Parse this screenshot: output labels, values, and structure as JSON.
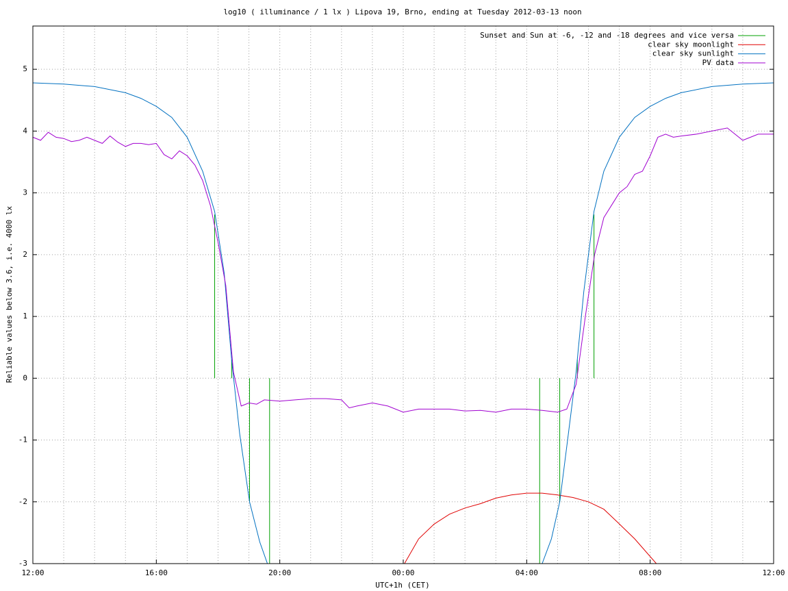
{
  "chart_data": {
    "type": "line",
    "title": "log10 ( illuminance / 1 lx ) Lipova 19, Brno, ending at Tuesday 2012-03-13 noon",
    "x_label": "UTC+1h (CET)",
    "y_label": "Reliable values below 3.6, i.e. 4000 lx",
    "xlim": [
      0,
      24
    ],
    "ylim": [
      -3,
      5.7
    ],
    "xticks": [
      {
        "value": 0,
        "label": "12:00"
      },
      {
        "value": 4,
        "label": "16:00"
      },
      {
        "value": 8,
        "label": "20:00"
      },
      {
        "value": 12,
        "label": "00:00"
      },
      {
        "value": 16,
        "label": "04:00"
      },
      {
        "value": 20,
        "label": "08:00"
      },
      {
        "value": 24,
        "label": "12:00"
      }
    ],
    "x_minor_grid": [
      1,
      2,
      3,
      5,
      6,
      7,
      9,
      10,
      11,
      13,
      14,
      15,
      17,
      18,
      19,
      21,
      22,
      23
    ],
    "yticks": [
      -3,
      -2,
      -1,
      0,
      1,
      2,
      3,
      4,
      5
    ],
    "grid": true,
    "legend": "top-right",
    "series": [
      {
        "name": "Sunset and Sun at -6, -12 and -18 degrees and vice versa",
        "color": "#00a000",
        "style": "impulses",
        "x": [
          5.89,
          6.44,
          7.02,
          7.67,
          16.42,
          17.07,
          17.64,
          18.18
        ],
        "values": [
          2.65,
          0.3,
          -2.0,
          -3,
          -3,
          -2.0,
          0.3,
          2.65
        ]
      },
      {
        "name": "clear sky moonlight",
        "color": "#e00000",
        "style": "line",
        "x": [
          12.04,
          12.5,
          13,
          13.5,
          14,
          14.5,
          15,
          15.5,
          16,
          16.5,
          17,
          17.5,
          18,
          18.5,
          18.9,
          19.5,
          20.2
        ],
        "values": [
          -3,
          -2.6,
          -2.36,
          -2.2,
          -2.1,
          -2.03,
          -1.94,
          -1.89,
          -1.86,
          -1.86,
          -1.89,
          -1.93,
          -2.0,
          -2.12,
          -2.31,
          -2.6,
          -3
        ]
      },
      {
        "name": "clear sky sunlight",
        "color": "#0070c0",
        "style": "line",
        "x": [
          0,
          1,
          2,
          3,
          3.5,
          4,
          4.5,
          5,
          5.5,
          5.89,
          6.2,
          6.44,
          6.7,
          7.02,
          7.35,
          7.6,
          16.5,
          16.8,
          17.07,
          17.35,
          17.6,
          17.85,
          18.18,
          18.5,
          19,
          19.5,
          20,
          20.5,
          21,
          22,
          23,
          24
        ],
        "values": [
          4.78,
          4.76,
          4.72,
          4.62,
          4.53,
          4.4,
          4.22,
          3.9,
          3.35,
          2.7,
          1.7,
          0.3,
          -0.9,
          -2.0,
          -2.65,
          -3,
          -3,
          -2.6,
          -2.0,
          -0.9,
          0.1,
          1.4,
          2.7,
          3.35,
          3.9,
          4.22,
          4.4,
          4.53,
          4.62,
          4.72,
          4.76,
          4.78
        ]
      },
      {
        "name": "PV data",
        "color": "#a000d0",
        "style": "line",
        "x": [
          0,
          0.25,
          0.5,
          0.75,
          1,
          1.25,
          1.5,
          1.75,
          2,
          2.25,
          2.5,
          2.75,
          3,
          3.25,
          3.5,
          3.75,
          4,
          4.25,
          4.5,
          4.75,
          5,
          5.25,
          5.5,
          5.75,
          6,
          6.25,
          6.5,
          6.75,
          7,
          7.25,
          7.5,
          8,
          8.5,
          9,
          9.5,
          10,
          10.25,
          10.5,
          11,
          11.5,
          12,
          12.5,
          13,
          13.5,
          14,
          14.5,
          15,
          15.5,
          16,
          16.5,
          17,
          17.3,
          17.6,
          17.9,
          18.2,
          18.5,
          18.75,
          19,
          19.25,
          19.5,
          19.75,
          20,
          20.25,
          20.5,
          20.75,
          21,
          21.5,
          22,
          22.5,
          23,
          23.5,
          24
        ],
        "values": [
          3.9,
          3.85,
          3.98,
          3.9,
          3.88,
          3.83,
          3.85,
          3.9,
          3.85,
          3.8,
          3.92,
          3.82,
          3.75,
          3.8,
          3.8,
          3.78,
          3.8,
          3.62,
          3.55,
          3.68,
          3.6,
          3.45,
          3.2,
          2.8,
          2.2,
          1.5,
          0.1,
          -0.45,
          -0.4,
          -0.42,
          -0.35,
          -0.37,
          -0.35,
          -0.33,
          -0.33,
          -0.35,
          -0.48,
          -0.45,
          -0.4,
          -0.45,
          -0.55,
          -0.5,
          -0.5,
          -0.5,
          -0.53,
          -0.52,
          -0.55,
          -0.5,
          -0.5,
          -0.52,
          -0.55,
          -0.5,
          -0.1,
          1.0,
          2.0,
          2.6,
          2.8,
          3.0,
          3.1,
          3.3,
          3.35,
          3.6,
          3.9,
          3.95,
          3.9,
          3.92,
          3.95,
          4.0,
          4.05,
          3.85,
          3.95,
          3.95
        ]
      }
    ]
  }
}
